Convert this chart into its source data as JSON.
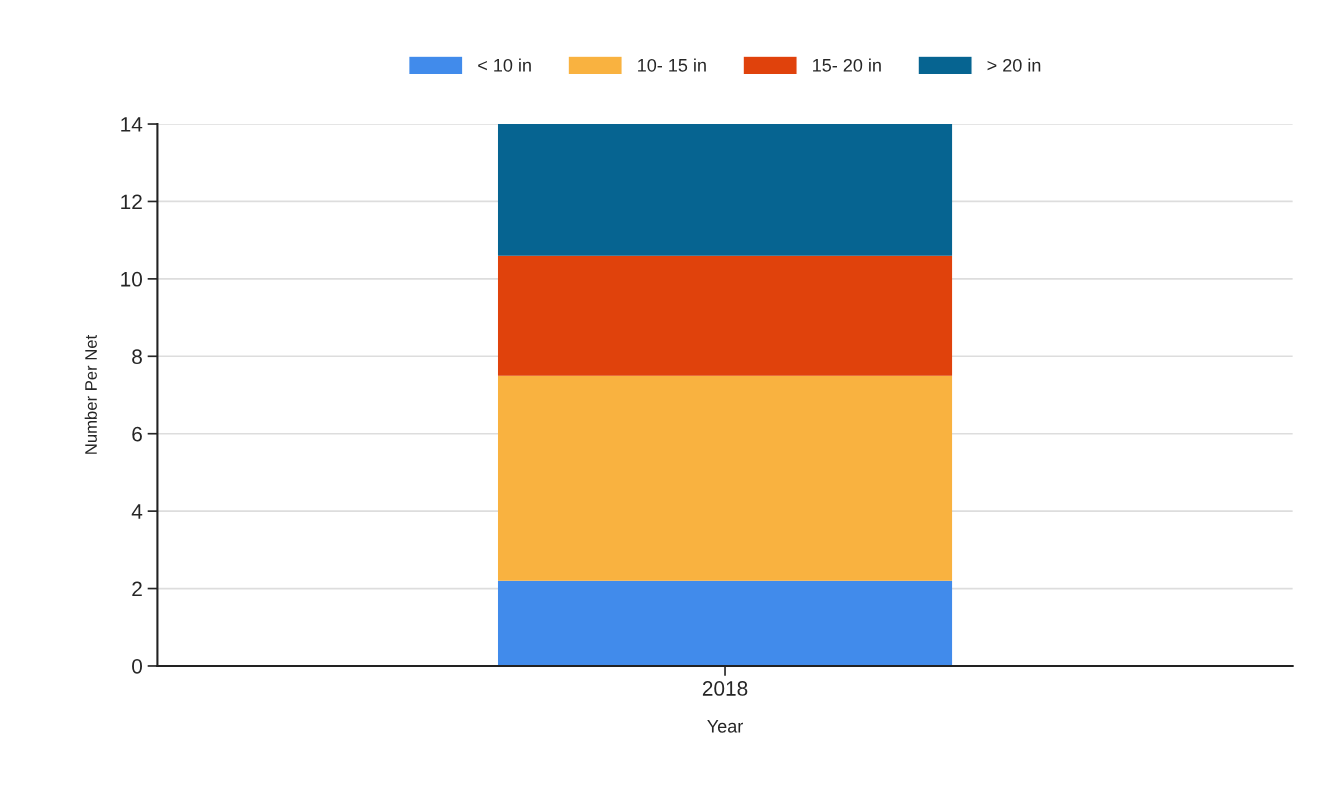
{
  "chart_data": {
    "type": "bar",
    "stacked": true,
    "xlabel": "Year",
    "ylabel": "Number Per Net",
    "categories": [
      "2018"
    ],
    "series": [
      {
        "name": "< 10 in",
        "color": "#418beb",
        "values": [
          2.2
        ]
      },
      {
        "name": "10- 15 in",
        "color": "#f9b240",
        "values": [
          5.3
        ]
      },
      {
        "name": "15- 20 in",
        "color": "#e0420c",
        "values": [
          3.1
        ]
      },
      {
        "name": "> 20 in",
        "color": "#066491",
        "values": [
          3.4
        ]
      }
    ],
    "ylim": [
      0,
      14
    ],
    "yticks": [
      0,
      2,
      4,
      6,
      8,
      10,
      12,
      14
    ],
    "grid": "y",
    "legend": "top"
  }
}
